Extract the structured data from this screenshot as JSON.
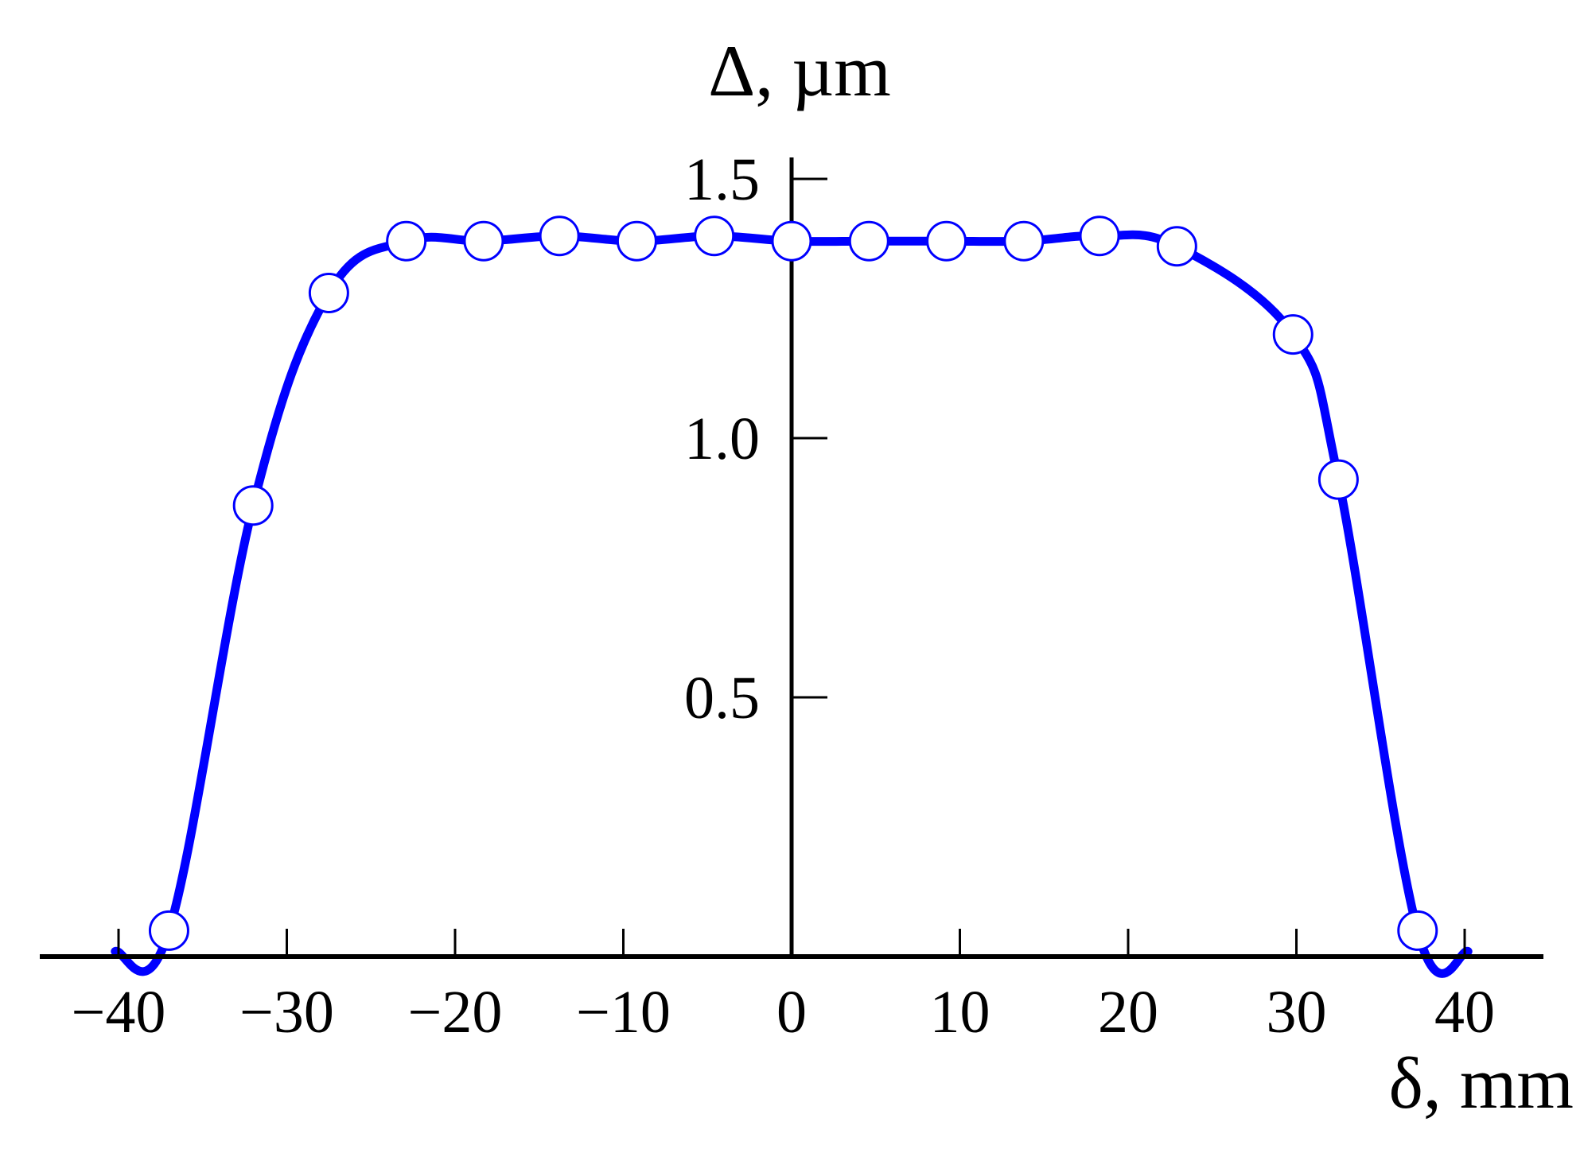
{
  "chart_data": {
    "type": "line",
    "title": "",
    "xlabel": "δ, mm",
    "ylabel": "Δ, µm",
    "xlim": [
      -40,
      40
    ],
    "ylim": [
      0,
      1.5
    ],
    "x_ticks": [
      -40,
      -30,
      -20,
      -10,
      0,
      10,
      20,
      30,
      40
    ],
    "x_tick_labels": [
      "−40",
      "−30",
      "−20",
      "−10",
      "0",
      "10",
      "20",
      "30",
      "40"
    ],
    "y_ticks": [
      0.5,
      1.0,
      1.5
    ],
    "y_tick_labels": [
      "0.5",
      "1.0",
      "1.5"
    ],
    "grid": false,
    "legend": "none",
    "line_color": "#0000ff",
    "marker": "open-circle",
    "series": [
      {
        "x": [
          -37,
          -32,
          -27.5,
          -22.9,
          -18.3,
          -13.8,
          -9.2,
          -4.6,
          0,
          4.6,
          9.2,
          13.8,
          18.3,
          22.9,
          29.8,
          32.5,
          37.2
        ],
        "y": [
          0.05,
          0.87,
          1.28,
          1.38,
          1.38,
          1.39,
          1.38,
          1.39,
          1.38,
          1.38,
          1.38,
          1.38,
          1.39,
          1.37,
          1.2,
          0.92,
          0.05
        ]
      }
    ]
  }
}
